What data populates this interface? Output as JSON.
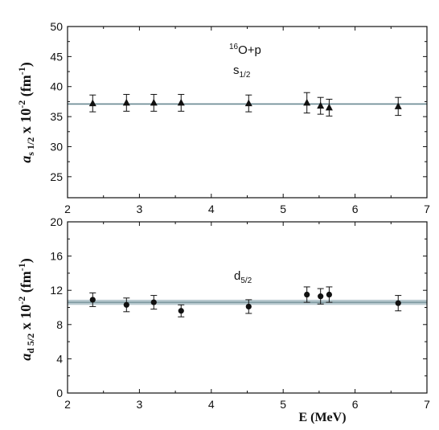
{
  "chart_data": [
    {
      "type": "scatter",
      "annotation_main": "O+p",
      "annotation_main_sup": "16",
      "annotation_wave": "s",
      "annotation_wave_sub": "1/2",
      "ylabel_main": "a",
      "ylabel_sub": "s 1/2",
      "ylabel_rest": " x 10",
      "ylabel_exp": "-2",
      "ylabel_unit": " (fm",
      "ylabel_unit_exp": "-1",
      "ylabel_close": ")",
      "xlim": [
        2,
        7
      ],
      "ylim": [
        21.5,
        50
      ],
      "xticks": [
        2,
        3,
        4,
        5,
        6,
        7
      ],
      "yticks": [
        25,
        30,
        35,
        40,
        45,
        50
      ],
      "marker": "triangle",
      "fit_value": 37.1,
      "fit_band": [
        36.95,
        37.25
      ],
      "x": [
        2.35,
        2.82,
        3.2,
        3.58,
        4.52,
        5.33,
        5.52,
        5.64,
        6.6
      ],
      "y": [
        37.2,
        37.3,
        37.3,
        37.3,
        37.2,
        37.3,
        36.8,
        36.5,
        36.7
      ],
      "yerr": [
        1.4,
        1.4,
        1.4,
        1.4,
        1.4,
        1.7,
        1.4,
        1.4,
        1.5
      ]
    },
    {
      "type": "scatter",
      "annotation_wave": "d",
      "annotation_wave_sub": "5/2",
      "ylabel_main": "a",
      "ylabel_sub": "d 5/2",
      "ylabel_rest": " x 10",
      "ylabel_exp": "-2",
      "ylabel_unit": " (fm",
      "ylabel_unit_exp": "-1",
      "ylabel_close": ")",
      "xlabel": "E (MeV)",
      "xlim": [
        2,
        7
      ],
      "ylim": [
        0,
        20
      ],
      "xticks": [
        2,
        3,
        4,
        5,
        6,
        7
      ],
      "yticks": [
        0,
        4,
        8,
        12,
        16,
        20
      ],
      "marker": "circle",
      "fit_value": 10.6,
      "fit_band": [
        10.3,
        10.9
      ],
      "x": [
        2.35,
        2.82,
        3.2,
        3.58,
        4.52,
        5.33,
        5.52,
        5.64,
        6.6
      ],
      "y": [
        10.9,
        10.3,
        10.6,
        9.6,
        10.1,
        11.5,
        11.3,
        11.5,
        10.5
      ],
      "yerr": [
        0.8,
        0.8,
        0.8,
        0.7,
        0.8,
        0.9,
        0.9,
        0.9,
        0.9
      ]
    }
  ]
}
